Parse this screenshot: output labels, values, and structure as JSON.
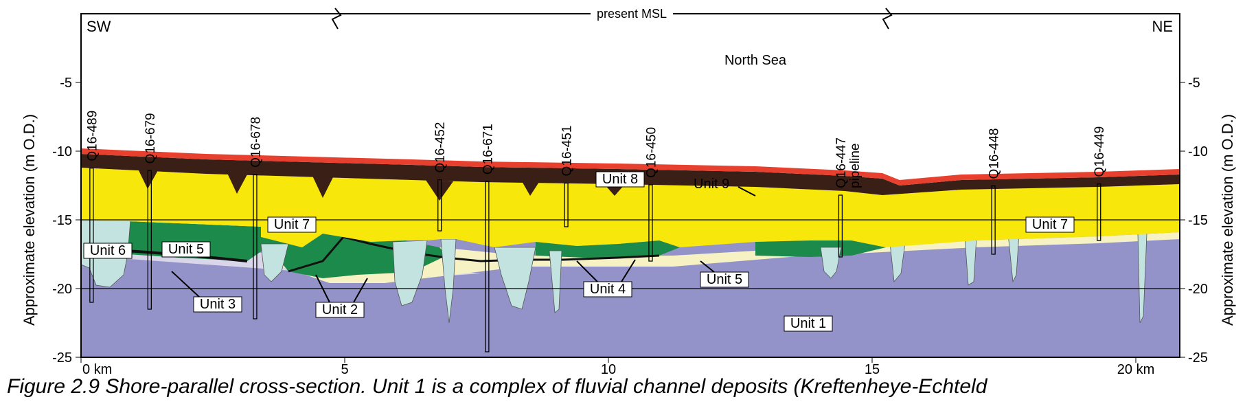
{
  "figure": {
    "orientation_left": "SW",
    "orientation_right": "NE",
    "sea_level_label": "present MSL",
    "water_label": "North Sea",
    "y_axis_title_left": "Approximate elevation (m O.D.)",
    "y_axis_title_right": "Approximate elevation (m O.D.)",
    "y_ticks": [
      "-5",
      "-10",
      "-15",
      "-20",
      "-25"
    ],
    "x_ticks": [
      "0 km",
      "5",
      "10",
      "15",
      "20 km"
    ],
    "boreholes": [
      {
        "id": "Q16-489",
        "km": 0.2,
        "bottom_m": -21.0
      },
      {
        "id": "Q16-679",
        "km": 1.3,
        "bottom_m": -21.5
      },
      {
        "id": "Q16-678",
        "km": 3.3,
        "bottom_m": -22.2
      },
      {
        "id": "Q16-452",
        "km": 6.8,
        "bottom_m": -15.8
      },
      {
        "id": "Q16-671",
        "km": 7.7,
        "bottom_m": -24.6
      },
      {
        "id": "Q16-451",
        "km": 9.2,
        "bottom_m": -15.5
      },
      {
        "id": "Q16-450",
        "km": 10.8,
        "bottom_m": -18.0
      },
      {
        "id": "Q16-447",
        "km": 14.4,
        "bottom_m": -17.7,
        "note": "pipeline"
      },
      {
        "id": "Q16-448",
        "km": 17.3,
        "bottom_m": -17.5
      },
      {
        "id": "Q16-449",
        "km": 19.3,
        "bottom_m": -16.5
      }
    ],
    "units": {
      "u1": "Unit 1",
      "u2": "Unit 2",
      "u3": "Unit 3",
      "u4a": "Unit 4",
      "u5a": "Unit 5",
      "u5b": "Unit 5",
      "u6": "Unit 6",
      "u7a": "Unit 7",
      "u7b": "Unit 7",
      "u8": "Unit 8",
      "u9": "Unit 9"
    },
    "colors": {
      "unit1": "#9493c9",
      "unit2": "#f6f2c3",
      "unit3": "#d9d6ea",
      "unit4": "#111111",
      "unit5": "#1b8a4a",
      "unit6": "#c3e3e1",
      "unit7": "#f7e70a",
      "unit8": "#3a1f17",
      "unit9": "#e8402e"
    }
  },
  "caption": "Figure 2.9  Shore-parallel cross-section. Unit 1 is a complex of fluvial channel deposits (Kreftenheye-Echteld"
}
